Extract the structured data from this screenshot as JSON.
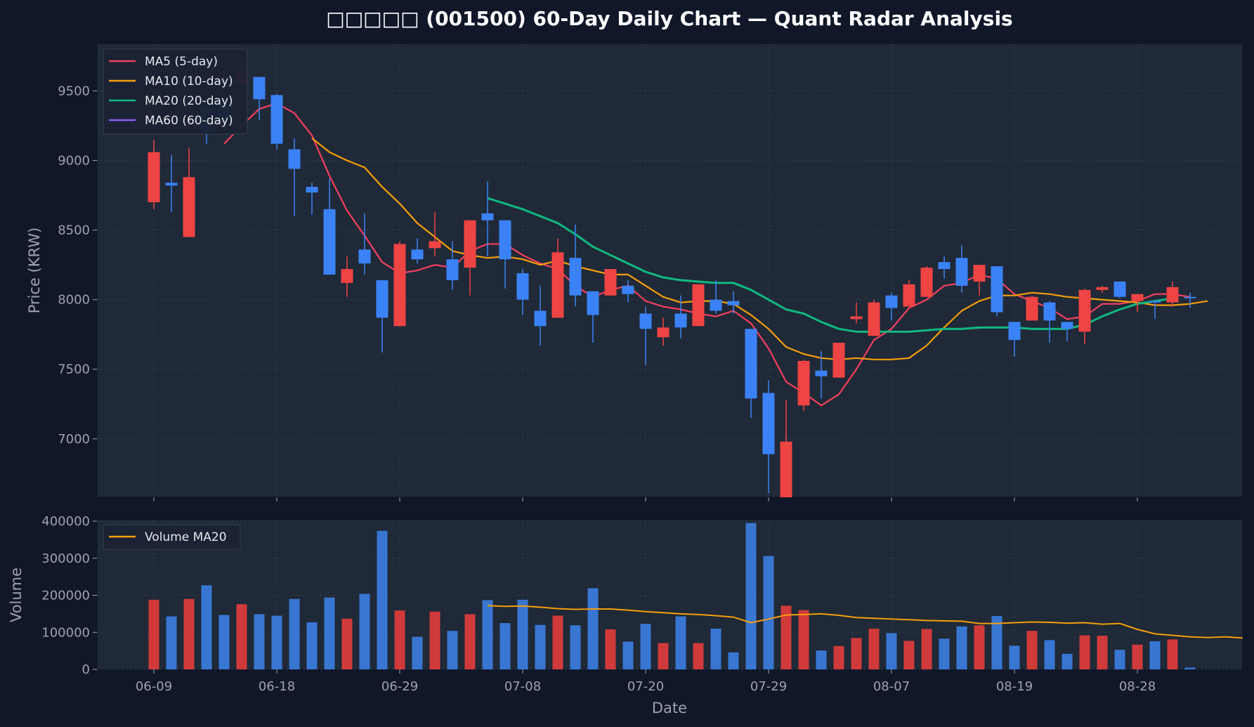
{
  "colors": {
    "background": "#0f1729",
    "plot_bg": "#1f2937",
    "up": "#ef4444",
    "down": "#3b82f6",
    "ma5": "#f43f5e",
    "ma10": "#f59e0b",
    "ma20": "#10b981",
    "ma60": "#8b5cf6",
    "vol_ma": "#f59e0b"
  },
  "chart_data": {
    "type": "candlestick",
    "title": "□□□□□ (001500) 60-Day Daily Chart — Quant Radar Analysis",
    "xlabel": "Date",
    "ylabel": "Price (KRW)",
    "volume_ylabel": "Volume",
    "ylim": [
      6580,
      9840
    ],
    "volume_ylim": [
      0,
      400000
    ],
    "grid": true,
    "legend_placement": "top-left",
    "price_ticks": [
      7000,
      7500,
      8000,
      8500,
      9000,
      9500
    ],
    "volume_ticks": [
      0,
      100000,
      200000,
      300000,
      400000
    ],
    "volume_tick_labels": [
      "0",
      "100000",
      "200000",
      "300000",
      "400000"
    ],
    "x_ticks": [
      {
        "label": "06-09",
        "index": 0
      },
      {
        "label": "06-18",
        "index": 7
      },
      {
        "label": "06-29",
        "index": 14
      },
      {
        "label": "07-08",
        "index": 21
      },
      {
        "label": "07-20",
        "index": 28
      },
      {
        "label": "07-29",
        "index": 35
      },
      {
        "label": "08-07",
        "index": 42
      },
      {
        "label": "08-19",
        "index": 49
      },
      {
        "label": "08-28",
        "index": 56
      }
    ],
    "legend": [
      {
        "label": "MA5 (5-day)",
        "color": "#f43f5e"
      },
      {
        "label": "MA10 (10-day)",
        "color": "#f59e0b"
      },
      {
        "label": "MA20 (20-day)",
        "color": "#10b981"
      },
      {
        "label": "MA60 (60-day)",
        "color": "#8b5cf6"
      }
    ],
    "volume_legend": [
      {
        "label": "Volume MA20",
        "color": "#f59e0b"
      }
    ],
    "candles": [
      {
        "o": 8700,
        "h": 9150,
        "l": 8650,
        "c": 9060,
        "up": true
      },
      {
        "o": 8840,
        "h": 9040,
        "l": 8630,
        "c": 8820,
        "up": false
      },
      {
        "o": 8450,
        "h": 9090,
        "l": 8450,
        "c": 8880,
        "up": true
      },
      {
        "o": 9380,
        "h": 9450,
        "l": 9120,
        "c": 9200,
        "up": false
      },
      {
        "o": 9400,
        "h": 9480,
        "l": 9250,
        "c": 9310,
        "up": false
      },
      {
        "o": 9550,
        "h": 9700,
        "l": 9500,
        "c": 9650,
        "up": true
      },
      {
        "o": 9600,
        "h": 9600,
        "l": 9290,
        "c": 9440,
        "up": false
      },
      {
        "o": 9470,
        "h": 9480,
        "l": 9080,
        "c": 9120,
        "up": false
      },
      {
        "o": 9080,
        "h": 9160,
        "l": 8600,
        "c": 8940,
        "up": false
      },
      {
        "o": 8810,
        "h": 8840,
        "l": 8610,
        "c": 8770,
        "up": false
      },
      {
        "o": 8650,
        "h": 8870,
        "l": 8180,
        "c": 8180,
        "up": false
      },
      {
        "o": 8120,
        "h": 8310,
        "l": 8020,
        "c": 8220,
        "up": true
      },
      {
        "o": 8360,
        "h": 8620,
        "l": 8180,
        "c": 8260,
        "up": false
      },
      {
        "o": 8140,
        "h": 8140,
        "l": 7620,
        "c": 7870,
        "up": false
      },
      {
        "o": 7810,
        "h": 8420,
        "l": 7810,
        "c": 8400,
        "up": true
      },
      {
        "o": 8360,
        "h": 8440,
        "l": 8260,
        "c": 8290,
        "up": false
      },
      {
        "o": 8370,
        "h": 8630,
        "l": 8310,
        "c": 8420,
        "up": true
      },
      {
        "o": 8290,
        "h": 8420,
        "l": 8070,
        "c": 8140,
        "up": false
      },
      {
        "o": 8230,
        "h": 8570,
        "l": 8030,
        "c": 8570,
        "up": true
      },
      {
        "o": 8620,
        "h": 8850,
        "l": 8310,
        "c": 8570,
        "up": false
      },
      {
        "o": 8570,
        "h": 8570,
        "l": 8080,
        "c": 8290,
        "up": false
      },
      {
        "o": 8190,
        "h": 8220,
        "l": 7890,
        "c": 8000,
        "up": false
      },
      {
        "o": 7920,
        "h": 8100,
        "l": 7670,
        "c": 7810,
        "up": false
      },
      {
        "o": 7870,
        "h": 8440,
        "l": 7870,
        "c": 8340,
        "up": true
      },
      {
        "o": 8300,
        "h": 8540,
        "l": 7950,
        "c": 8030,
        "up": false
      },
      {
        "o": 8060,
        "h": 8060,
        "l": 7690,
        "c": 7890,
        "up": false
      },
      {
        "o": 8030,
        "h": 8220,
        "l": 8030,
        "c": 8220,
        "up": true
      },
      {
        "o": 8100,
        "h": 8140,
        "l": 7980,
        "c": 8040,
        "up": false
      },
      {
        "o": 7900,
        "h": 7950,
        "l": 7530,
        "c": 7790,
        "up": false
      },
      {
        "o": 7730,
        "h": 7870,
        "l": 7670,
        "c": 7800,
        "up": true
      },
      {
        "o": 7900,
        "h": 8030,
        "l": 7720,
        "c": 7800,
        "up": false
      },
      {
        "o": 7810,
        "h": 8110,
        "l": 7810,
        "c": 8110,
        "up": true
      },
      {
        "o": 8000,
        "h": 8140,
        "l": 7900,
        "c": 7920,
        "up": false
      },
      {
        "o": 7990,
        "h": 8060,
        "l": 7900,
        "c": 7960,
        "up": false
      },
      {
        "o": 7790,
        "h": 7790,
        "l": 7150,
        "c": 7290,
        "up": false
      },
      {
        "o": 7330,
        "h": 7420,
        "l": 6610,
        "c": 6890,
        "up": false
      },
      {
        "o": 6580,
        "h": 7280,
        "l": 6580,
        "c": 6980,
        "up": true
      },
      {
        "o": 7240,
        "h": 7570,
        "l": 7200,
        "c": 7560,
        "up": true
      },
      {
        "o": 7490,
        "h": 7630,
        "l": 7290,
        "c": 7450,
        "up": false
      },
      {
        "o": 7440,
        "h": 7690,
        "l": 7440,
        "c": 7690,
        "up": true
      },
      {
        "o": 7860,
        "h": 7980,
        "l": 7830,
        "c": 7880,
        "up": true
      },
      {
        "o": 7740,
        "h": 8000,
        "l": 7740,
        "c": 7980,
        "up": true
      },
      {
        "o": 8030,
        "h": 8050,
        "l": 7850,
        "c": 7940,
        "up": false
      },
      {
        "o": 7950,
        "h": 8140,
        "l": 7950,
        "c": 8110,
        "up": true
      },
      {
        "o": 8020,
        "h": 8240,
        "l": 8020,
        "c": 8230,
        "up": true
      },
      {
        "o": 8270,
        "h": 8310,
        "l": 8150,
        "c": 8220,
        "up": false
      },
      {
        "o": 8300,
        "h": 8390,
        "l": 8050,
        "c": 8100,
        "up": false
      },
      {
        "o": 8130,
        "h": 8250,
        "l": 8030,
        "c": 8250,
        "up": true
      },
      {
        "o": 8240,
        "h": 8240,
        "l": 7880,
        "c": 7910,
        "up": false
      },
      {
        "o": 7840,
        "h": 7840,
        "l": 7590,
        "c": 7710,
        "up": false
      },
      {
        "o": 7850,
        "h": 8030,
        "l": 7850,
        "c": 8020,
        "up": true
      },
      {
        "o": 7980,
        "h": 7990,
        "l": 7690,
        "c": 7850,
        "up": false
      },
      {
        "o": 7840,
        "h": 7840,
        "l": 7700,
        "c": 7790,
        "up": false
      },
      {
        "o": 7770,
        "h": 8080,
        "l": 7680,
        "c": 8070,
        "up": true
      },
      {
        "o": 8070,
        "h": 8100,
        "l": 8050,
        "c": 8090,
        "up": true
      },
      {
        "o": 8130,
        "h": 8130,
        "l": 8010,
        "c": 8020,
        "up": false
      },
      {
        "o": 7990,
        "h": 8040,
        "l": 7910,
        "c": 8040,
        "up": true
      },
      {
        "o": 7990,
        "h": 7990,
        "l": 7860,
        "c": 7980,
        "up": false
      },
      {
        "o": 7980,
        "h": 8130,
        "l": 7950,
        "c": 8090,
        "up": true
      },
      {
        "o": 8020,
        "h": 8050,
        "l": 7940,
        "c": 8010,
        "up": false
      }
    ],
    "volume": [
      188000,
      143000,
      190000,
      227000,
      147000,
      176000,
      149000,
      145000,
      190000,
      127000,
      194000,
      137000,
      204000,
      374000,
      159000,
      88000,
      156000,
      104000,
      149000,
      187000,
      125000,
      188000,
      120000,
      145000,
      119000,
      219000,
      108000,
      75000,
      123000,
      71000,
      143000,
      71000,
      110000,
      46000,
      395000,
      306000,
      172000,
      160000,
      51000,
      63000,
      85000,
      110000,
      98000,
      77000,
      109000,
      83000,
      116000,
      119000,
      144000,
      64000,
      104000,
      79000,
      42000,
      92000,
      91000,
      53000,
      67000,
      76000,
      81000,
      5000
    ],
    "series": [
      {
        "name": "MA5 (5-day)",
        "start_index": 4,
        "values": [
          9120,
          9250,
          9370,
          9410,
          9340,
          9180,
          8890,
          8640,
          8460,
          8270,
          8190,
          8210,
          8250,
          8230,
          8350,
          8400,
          8400,
          8320,
          8260,
          8220,
          8100,
          8020,
          8070,
          8100,
          7990,
          7950,
          7930,
          7900,
          7880,
          7920,
          7830,
          7650,
          7410,
          7330,
          7240,
          7320,
          7500,
          7710,
          7790,
          7940,
          8000,
          8100,
          8120,
          8180,
          8150,
          8040,
          7990,
          7940,
          7860,
          7880,
          7970,
          7970,
          7990,
          8040,
          8040,
          8020
        ]
      },
      {
        "name": "MA10 (10-day)",
        "start_index": 9,
        "values": [
          9160,
          9060,
          9000,
          8950,
          8810,
          8690,
          8550,
          8450,
          8350,
          8320,
          8300,
          8310,
          8290,
          8250,
          8280,
          8240,
          8210,
          8180,
          8180,
          8100,
          8020,
          7980,
          7990,
          7990,
          7970,
          7890,
          7790,
          7660,
          7610,
          7580,
          7570,
          7580,
          7570,
          7570,
          7580,
          7670,
          7800,
          7920,
          7990,
          8030,
          8030,
          8050,
          8040,
          8020,
          8010,
          8000,
          7990,
          7980,
          7960,
          7960,
          7970,
          7990
        ]
      },
      {
        "name": "MA20 (20-day)",
        "start_index": 19,
        "values": [
          8730,
          8690,
          8650,
          8600,
          8550,
          8470,
          8380,
          8320,
          8260,
          8200,
          8160,
          8140,
          8130,
          8120,
          8120,
          8070,
          8000,
          7930,
          7900,
          7840,
          7790,
          7770,
          7770,
          7770,
          7770,
          7780,
          7790,
          7790,
          7800,
          7800,
          7800,
          7790,
          7790,
          7790,
          7820,
          7880,
          7930,
          7970,
          7990,
          8010
        ]
      },
      {
        "name": "MA60 (60-day)",
        "start_index": 59,
        "values": []
      },
      {
        "name": "Volume MA20",
        "start_index": 19,
        "values": [
          172000,
          170000,
          171000,
          168000,
          164000,
          162000,
          163000,
          163000,
          160000,
          156000,
          153000,
          150000,
          148000,
          145000,
          141000,
          126000,
          136000,
          147000,
          148000,
          150000,
          146000,
          140000,
          138000,
          136000,
          134000,
          132000,
          131000,
          130000,
          124000,
          124000,
          126000,
          128000,
          127000,
          125000,
          126000,
          122000,
          124000,
          108000,
          96000,
          92000,
          88000,
          86000,
          88000,
          85000
        ]
      }
    ]
  }
}
